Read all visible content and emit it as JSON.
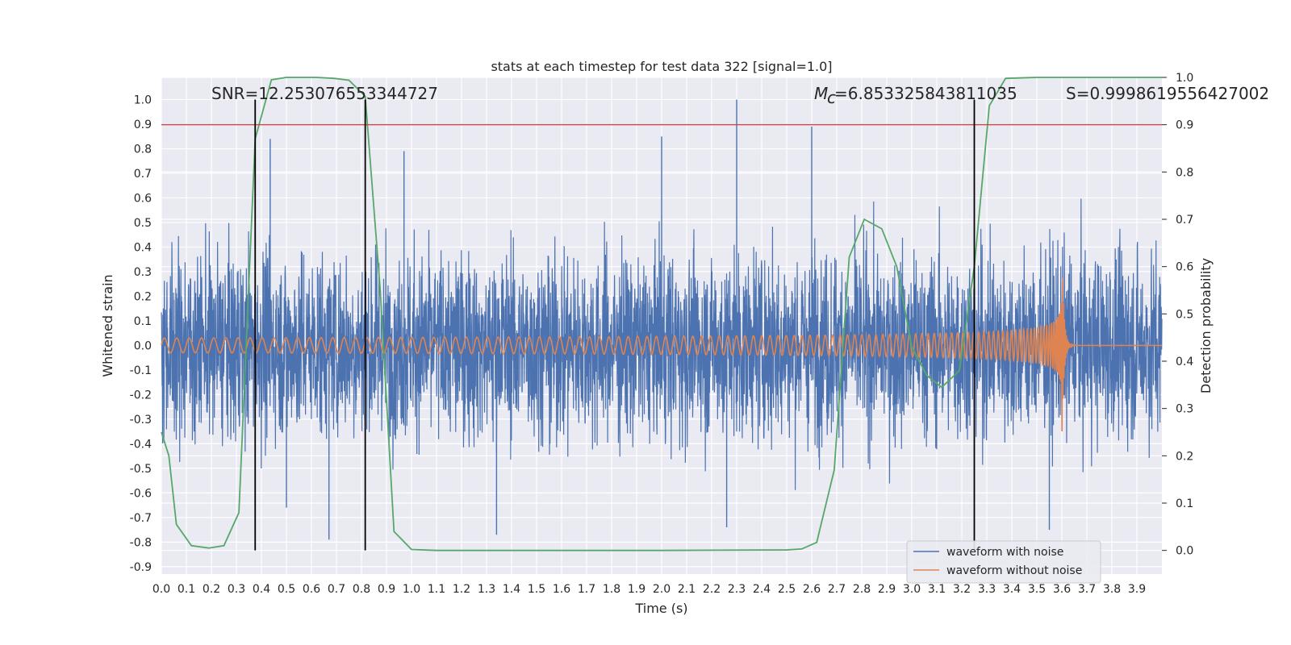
{
  "chart_data": {
    "type": "line",
    "title": "stats at each timestep for test data 322 [signal=1.0]",
    "xlabel": "Time (s)",
    "ylabel": "Whitened strain",
    "y2label": "Detection probability",
    "xlim": [
      0.0,
      4.0
    ],
    "ylim": [
      -0.93,
      1.09
    ],
    "y2lim": [
      -0.05,
      1.0
    ],
    "grid": true,
    "legend_position": "bottom-right",
    "x_ticks": [
      "0.0",
      "0.1",
      "0.2",
      "0.3",
      "0.4",
      "0.5",
      "0.6",
      "0.7",
      "0.8",
      "0.9",
      "1.0",
      "1.1",
      "1.2",
      "1.3",
      "1.4",
      "1.5",
      "1.6",
      "1.7",
      "1.8",
      "1.9",
      "2.0",
      "2.1",
      "2.2",
      "2.3",
      "2.4",
      "2.5",
      "2.6",
      "2.7",
      "2.8",
      "2.9",
      "3.0",
      "3.1",
      "3.2",
      "3.3",
      "3.4",
      "3.5",
      "3.6",
      "3.7",
      "3.8",
      "3.9"
    ],
    "y_ticks": [
      "1.0",
      "0.9",
      "0.8",
      "0.7",
      "0.6",
      "0.5",
      "0.4",
      "0.3",
      "0.2",
      "0.1",
      "0.0",
      "-0.1",
      "-0.2",
      "-0.3",
      "-0.4",
      "-0.5",
      "-0.6",
      "-0.7",
      "-0.8",
      "-0.9"
    ],
    "y2_ticks": [
      "1.0",
      "0.9",
      "0.8",
      "0.7",
      "0.6",
      "0.5",
      "0.4",
      "0.3",
      "0.2",
      "0.1",
      "0.0"
    ],
    "annotations": {
      "snr": "SNR=12.253076553344727",
      "mc_value": "=6.853325843811035",
      "s": "S=0.9998619556427002"
    },
    "threshold_line": {
      "y2": 0.9,
      "color": "#c44e52"
    },
    "vertical_lines_x": [
      0.375,
      0.815,
      3.25
    ],
    "series": [
      {
        "name": "waveform with noise",
        "color": "#4c72b0",
        "noise_amplitude": 0.35,
        "peak": 1.0
      },
      {
        "name": "waveform without noise",
        "color": "#dd8452",
        "chirp_start_freq": 20,
        "merger_time": 3.6,
        "peak_amplitude": 0.38
      },
      {
        "color": "#55a868",
        "axis": "y2",
        "x": [
          0.0,
          0.03,
          0.06,
          0.12,
          0.19,
          0.25,
          0.31,
          0.375,
          0.44,
          0.5,
          0.56,
          0.62,
          0.69,
          0.75,
          0.815,
          0.875,
          0.93,
          1.0,
          1.1,
          1.5,
          2.0,
          2.5,
          2.56,
          2.62,
          2.69,
          2.75,
          2.81,
          2.88,
          2.94,
          3.0,
          3.06,
          3.12,
          3.19,
          3.25,
          3.31,
          3.375,
          3.5,
          4.0
        ],
        "y": [
          0.25,
          0.2,
          0.055,
          0.01,
          0.005,
          0.01,
          0.08,
          0.87,
          0.995,
          1.0,
          1.0,
          1.0,
          0.998,
          0.994,
          0.96,
          0.55,
          0.04,
          0.002,
          0.0,
          0.0,
          0.0,
          0.001,
          0.003,
          0.017,
          0.17,
          0.62,
          0.7,
          0.68,
          0.6,
          0.43,
          0.37,
          0.345,
          0.38,
          0.6,
          0.94,
          0.998,
          1.0,
          1.0
        ]
      }
    ]
  },
  "legend": {
    "item_1": "waveform with noise",
    "item_2": "waveform without noise"
  }
}
